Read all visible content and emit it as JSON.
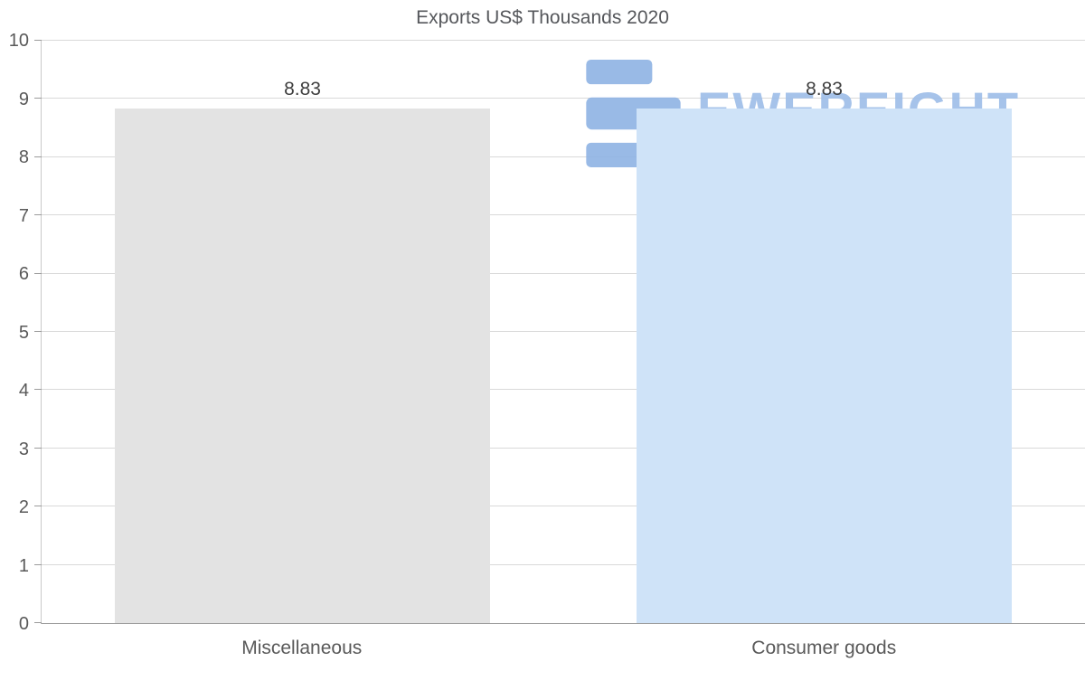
{
  "chart_data": {
    "type": "bar",
    "title": "Exports US$ Thousands 2020",
    "categories": [
      "Miscellaneous",
      "Consumer goods"
    ],
    "values": [
      8.83,
      8.83
    ],
    "bar_colors": [
      "#e3e3e3",
      "#cfe3f8"
    ],
    "ylim": [
      0,
      10
    ],
    "yticks": [
      0,
      1,
      2,
      3,
      4,
      5,
      6,
      7,
      8,
      9,
      10
    ],
    "xlabel": "",
    "ylabel": "",
    "grid": "horizontal",
    "legend": "none"
  },
  "watermark": {
    "text": "EWEREIGHT",
    "text_color": "#9dbde8",
    "logo_color": "#8fb3e4"
  },
  "colors": {
    "title": "#55575b",
    "axis_label": "#595959",
    "gridline": "#d9d9d9",
    "data_label": "#3f3f3f"
  }
}
